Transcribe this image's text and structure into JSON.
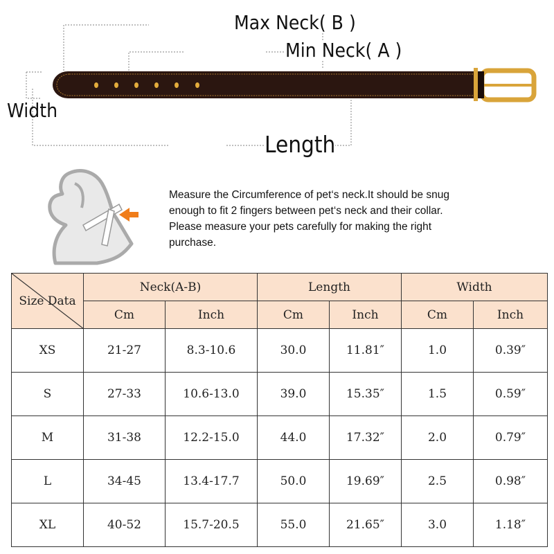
{
  "diagram": {
    "max_neck_label": "Max Neck( B )",
    "min_neck_label": "Min Neck( A )",
    "width_label": "Width",
    "length_label": "Length",
    "belt_color": "#2b1610",
    "buckle_color": "#d9a43a"
  },
  "instructions": {
    "lines": [
      "Measure the Circumference of pet‘s neck.It should be snug",
      "enough to fit 2 fingers between pet‘s neck and their collar.",
      "Please measure your pets carefully for making the right",
      "purchase."
    ],
    "arrow_color": "#f07d1a"
  },
  "table": {
    "corner_label": "Size Data",
    "groups": [
      "Neck(A-B)",
      "Length",
      "Width"
    ],
    "units": [
      "Cm",
      "Inch",
      "Cm",
      "Inch",
      "Cm",
      "Inch"
    ],
    "header_color": "#fbe1cd",
    "rows": [
      [
        "XS",
        "21-27",
        "8.3-10.6",
        "30.0",
        "11.81″",
        "1.0",
        "0.39″"
      ],
      [
        "S",
        "27-33",
        "10.6-13.0",
        "39.0",
        "15.35″",
        "1.5",
        "0.59″"
      ],
      [
        "M",
        "31-38",
        "12.2-15.0",
        "44.0",
        "17.32″",
        "2.0",
        "0.79″"
      ],
      [
        "L",
        "34-45",
        "13.4-17.7",
        "50.0",
        "19.69″",
        "2.5",
        "0.98″"
      ],
      [
        "XL",
        "40-52",
        "15.7-20.5",
        "55.0",
        "21.65″",
        "3.0",
        "1.18″"
      ]
    ]
  }
}
